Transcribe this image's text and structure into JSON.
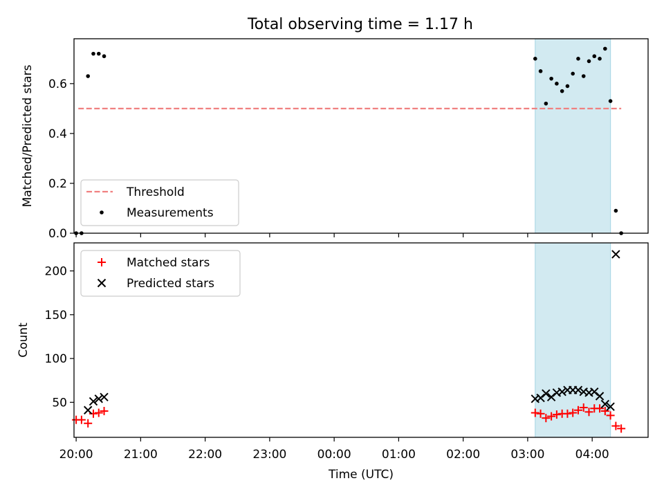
{
  "figure": {
    "title": "Total observing time = 1.17 h"
  },
  "chart_data": [
    {
      "type": "scatter",
      "ylabel": "Matched/Predicted stars",
      "ylim": [
        0,
        0.78
      ],
      "xlim": [
        "19:58",
        "04:52"
      ],
      "yticks": [
        0.0,
        0.2,
        0.4,
        0.6
      ],
      "ytick_labels": [
        "0.0",
        "0.2",
        "0.4",
        "0.6"
      ],
      "highlight_span": {
        "x": [
          "03:07",
          "04:17"
        ],
        "color": "#add8e6"
      },
      "threshold": {
        "name": "Threshold",
        "y": 0.5,
        "x": [
          "20:02",
          "04:27"
        ],
        "color": "#f08080",
        "style": "dashed"
      },
      "legend": {
        "position": "lower-left",
        "entries": [
          "Threshold",
          "Measurements"
        ]
      },
      "series": [
        {
          "name": "Measurements",
          "color": "#000000",
          "marker": "dot",
          "x": [
            "20:00",
            "20:05",
            "20:11",
            "20:16",
            "20:21",
            "20:26",
            "03:07",
            "03:12",
            "03:17",
            "03:22",
            "03:27",
            "03:32",
            "03:37",
            "03:42",
            "03:47",
            "03:52",
            "03:57",
            "04:02",
            "04:07",
            "04:12",
            "04:17",
            "04:22",
            "04:27"
          ],
          "y": [
            0.0,
            0.0,
            0.63,
            0.72,
            0.72,
            0.71,
            0.7,
            0.65,
            0.52,
            0.62,
            0.6,
            0.57,
            0.59,
            0.64,
            0.7,
            0.63,
            0.69,
            0.71,
            0.7,
            0.74,
            0.53,
            0.09,
            0.0
          ]
        }
      ]
    },
    {
      "type": "scatter",
      "xlabel": "Time (UTC)",
      "ylabel": "Count",
      "ylim": [
        10,
        232
      ],
      "yticks": [
        50,
        100,
        150,
        200
      ],
      "ytick_labels": [
        "50",
        "100",
        "150",
        "200"
      ],
      "xticks": [
        "20:00",
        "21:00",
        "22:00",
        "23:00",
        "00:00",
        "01:00",
        "02:00",
        "03:00",
        "04:00"
      ],
      "xtick_labels": [
        "20:00",
        "21:00",
        "22:00",
        "23:00",
        "00:00",
        "01:00",
        "02:00",
        "03:00",
        "04:00"
      ],
      "highlight_span": {
        "x": [
          "03:07",
          "04:17"
        ],
        "color": "#add8e6"
      },
      "legend": {
        "position": "upper-left",
        "entries": [
          "Matched stars",
          "Predicted stars"
        ]
      },
      "series": [
        {
          "name": "Matched stars",
          "color": "#ff0000",
          "marker": "plus",
          "x": [
            "20:00",
            "20:05",
            "20:11",
            "20:16",
            "20:21",
            "20:26",
            "03:07",
            "03:12",
            "03:17",
            "03:22",
            "03:27",
            "03:32",
            "03:37",
            "03:42",
            "03:47",
            "03:52",
            "03:57",
            "04:02",
            "04:07",
            "04:12",
            "04:17",
            "04:22",
            "04:27"
          ],
          "y": [
            30,
            30,
            26,
            37,
            38,
            40,
            38,
            37,
            32,
            34,
            36,
            37,
            37,
            38,
            41,
            44,
            39,
            43,
            43,
            40,
            35,
            23,
            20
          ]
        },
        {
          "name": "Predicted stars",
          "color": "#000000",
          "marker": "x",
          "x": [
            "20:11",
            "20:16",
            "20:21",
            "20:26",
            "03:07",
            "03:12",
            "03:17",
            "03:22",
            "03:27",
            "03:32",
            "03:37",
            "03:42",
            "03:47",
            "03:52",
            "03:57",
            "04:02",
            "04:07",
            "04:12",
            "04:17",
            "04:22"
          ],
          "y": [
            41,
            51,
            54,
            56,
            54,
            55,
            60,
            56,
            61,
            62,
            64,
            64,
            64,
            62,
            61,
            62,
            57,
            48,
            45,
            219
          ]
        }
      ]
    }
  ]
}
